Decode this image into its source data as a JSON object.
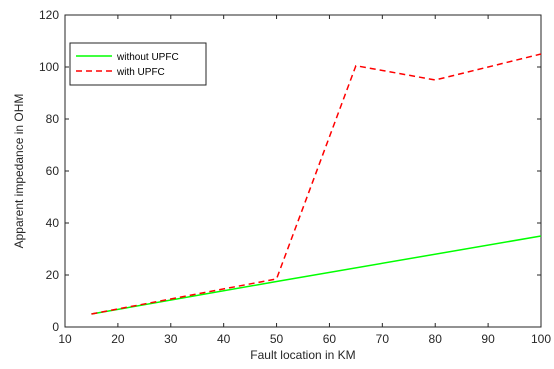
{
  "chart_data": {
    "type": "line",
    "title": "",
    "xlabel": "Fault location in KM",
    "ylabel": "Apparent impedance in OHM",
    "xlim": [
      10,
      100
    ],
    "ylim": [
      0,
      120
    ],
    "xticks": [
      10,
      20,
      30,
      40,
      50,
      60,
      70,
      80,
      90,
      100
    ],
    "yticks": [
      0,
      20,
      40,
      60,
      80,
      100,
      120
    ],
    "grid": false,
    "legend_position": "top-left",
    "series": [
      {
        "name": "without UPFC",
        "color": "#00ff00",
        "line_style": "solid",
        "x": [
          15,
          50,
          100
        ],
        "y": [
          5,
          17.5,
          35
        ]
      },
      {
        "name": "with UPFC",
        "color": "#ff0000",
        "line_style": "dashed",
        "x": [
          15,
          50,
          65,
          80,
          100
        ],
        "y": [
          5,
          18.5,
          100.5,
          95,
          105
        ]
      }
    ]
  }
}
